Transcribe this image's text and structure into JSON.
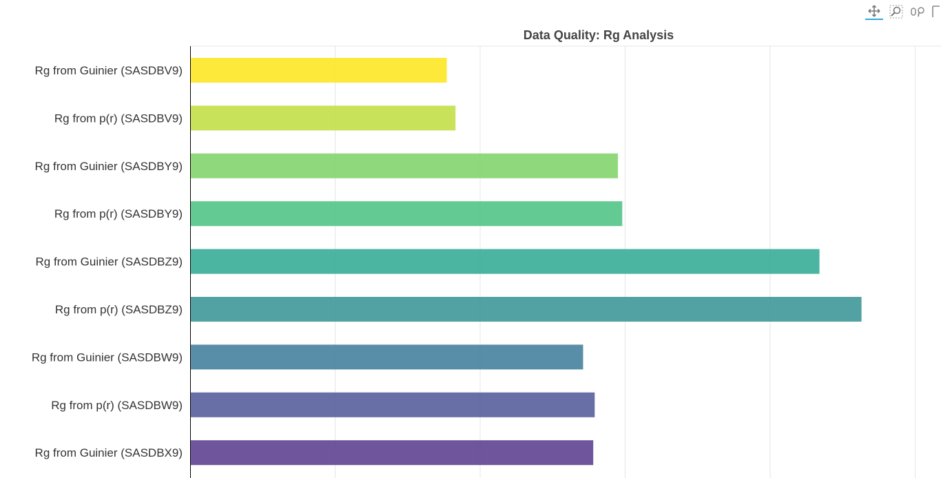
{
  "chart_data": {
    "type": "bar",
    "orientation": "horizontal",
    "title": "Data Quality: Rg Analysis",
    "xlabel": "",
    "ylabel": "",
    "grid": true,
    "xlim": [
      0,
      5.0
    ],
    "categories": [
      "Rg from Guinier (SASDBV9)",
      "Rg from p(r) (SASDBV9)",
      "Rg from Guinier (SASDBY9)",
      "Rg from p(r) (SASDBY9)",
      "Rg from Guinier (SASDBZ9)",
      "Rg from p(r) (SASDBZ9)",
      "Rg from Guinier (SASDBW9)",
      "Rg from p(r) (SASDBW9)",
      "Rg from Guinier (SASDBX9)"
    ],
    "values": [
      1.77,
      1.83,
      2.95,
      2.98,
      4.34,
      4.63,
      2.71,
      2.79,
      2.78
    ],
    "colors": [
      "#fde725",
      "#c2df48",
      "#84d46e",
      "#52c487",
      "#39ad98",
      "#3f9899",
      "#47829e",
      "#565f9c",
      "#5f4391"
    ]
  },
  "toolbar": {
    "tools": [
      {
        "name": "pan-icon",
        "active": true
      },
      {
        "name": "box-zoom-icon",
        "active": false
      },
      {
        "name": "wheel-zoom-icon",
        "active": false
      },
      {
        "name": "save-icon",
        "active": false
      }
    ]
  }
}
